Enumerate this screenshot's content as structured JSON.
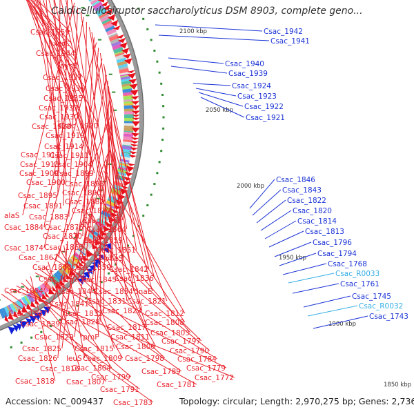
{
  "title": "Caldicellulosiruptor saccharolyticus DSM 8903, complete geno...",
  "footer": {
    "accession": "Accession: NC_009437",
    "topology": "Topology: circular; Length: 2,970,275 bp; Genes: 2,736"
  },
  "kbp_labels": [
    "2100 kbp",
    "2050 kbp",
    "2000 kbp",
    "1950 kbp",
    "1900 kbp",
    "1850 kbp"
  ],
  "colors": {
    "left_label": "#e8202a",
    "right_label": "#1b33d6",
    "rna_label": "#33aee6",
    "forward": "#e8101b",
    "reverse": "#1020d8",
    "backbone": "#888888",
    "tick": "#2f8a2f"
  },
  "left_labels": [
    "Csac_1959",
    "xerC",
    "Csac_1944",
    "pyrE",
    "Csac_1937",
    "Csac_1936",
    "Csac_1935",
    "Csac_1933",
    "Csac_1930",
    "Csac_1928",
    "Csac_1920",
    "Csac_1919",
    "Csac_1914",
    "Csac_1917",
    "Csac_1911",
    "Csac_1913",
    "Csac_1904",
    "Csac_1909",
    "Csac_1899",
    "Csac_1900",
    "Csac_1893",
    "Csac_1895",
    "Csac_1890",
    "Csac_1891",
    "Csac_1882",
    "alaS",
    "Csac_1883",
    "Csac_1877",
    "Csac_1884",
    "Csac_1876",
    "Csac_1869",
    "Csac_1864",
    "Csac_1870",
    "Csac_1874",
    "Csac_1865",
    "Csac_1859",
    "Csac_1867",
    "Csac_1851",
    "Csac_1853",
    "Csac_1860",
    "Csac_1850",
    "pheS",
    "Csac_1842",
    "Csac_1852",
    "Csac_1845",
    "Csac_1836",
    "Csac_1854",
    "Csac_1844",
    "Csac_1834",
    "dnaE",
    "Csac_1841",
    "Csac_1831",
    "Csac_1821",
    "Csac_1847",
    "Csac_1832",
    "Csac_1823",
    "Csac_1812",
    "Csac_1839",
    "Csac_1828",
    "Csac_1817",
    "Csac_1808",
    "Csac_1829",
    "rpmF",
    "Csac_1811",
    "Csac_1803",
    "Csac_1806",
    "Csac_1797",
    "Csac_1825",
    "Csac_1815",
    "Csac_1790",
    "Csac_1826",
    "leuS",
    "Csac_1809",
    "Csac_1798",
    "Csac_1784",
    "Csac_1816",
    "Csac_1804",
    "Csac_1789",
    "Csac_1779",
    "Csac_1818",
    "Csac_1807",
    "Csac_1799",
    "Csac_1781",
    "Csac_1772",
    "Csac_1791",
    "Csac_1783"
  ],
  "right_labels": [
    "Csac_1942",
    "Csac_1941",
    "Csac_1940",
    "Csac_1939",
    "Csac_1924",
    "Csac_1923",
    "Csac_1922",
    "Csac_1921",
    "Csac_1846",
    "Csac_1843",
    "Csac_1822",
    "Csac_1820",
    "Csac_1814",
    "Csac_1813",
    "Csac_1796",
    "Csac_1794",
    "Csac_1768",
    "Csac_R0033",
    "Csac_1761",
    "Csac_1745",
    "Csac_R0032",
    "Csac_1743"
  ]
}
